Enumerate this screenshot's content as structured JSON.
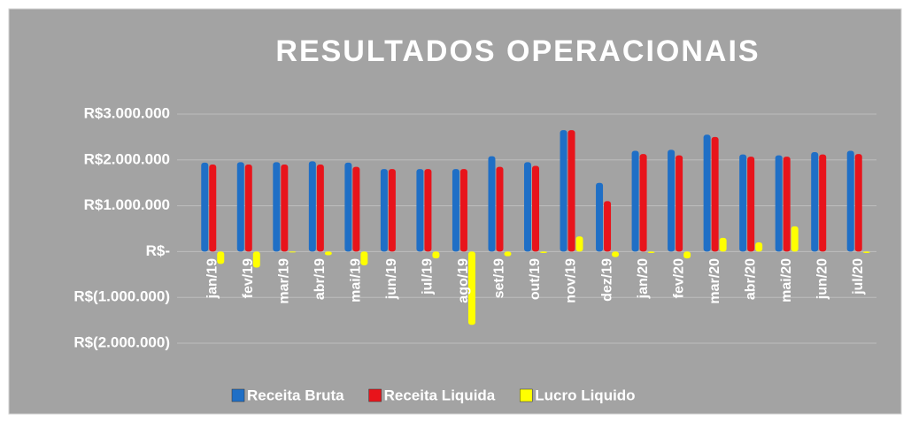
{
  "chart_data": {
    "type": "bar",
    "title": "RESULTADOS OPERACIONAIS",
    "categories": [
      "jan/19",
      "fev/19",
      "mar/19",
      "abr/19",
      "mai/19",
      "jun/19",
      "jul/19",
      "ago/19",
      "set/19",
      "out/19",
      "nov/19",
      "dez/19",
      "jan/20",
      "fev/20",
      "mar/20",
      "abr/20",
      "mai/20",
      "jun/20",
      "jul/20"
    ],
    "series": [
      {
        "name": "Receita Bruta",
        "color": "#1f6fc6",
        "values": [
          1940000,
          1950000,
          1950000,
          1970000,
          1940000,
          1800000,
          1800000,
          1800000,
          2080000,
          1950000,
          2650000,
          1500000,
          2200000,
          2220000,
          2550000,
          2120000,
          2100000,
          2170000,
          2200000
        ]
      },
      {
        "name": "Receita Liquida",
        "color": "#e8141b",
        "values": [
          1900000,
          1900000,
          1900000,
          1900000,
          1850000,
          1800000,
          1800000,
          1800000,
          1850000,
          1870000,
          2650000,
          1100000,
          2130000,
          2100000,
          2500000,
          2070000,
          2070000,
          2120000,
          2130000
        ]
      },
      {
        "name": "Lucro Liquido",
        "color": "#ffff00",
        "values": [
          -270000,
          -350000,
          -20000,
          -80000,
          -300000,
          0,
          -150000,
          -1600000,
          -100000,
          -30000,
          330000,
          -120000,
          -30000,
          -150000,
          300000,
          200000,
          550000,
          0,
          -30000
        ]
      }
    ],
    "ylim": [
      -2000000,
      3000000
    ],
    "yticks": [
      {
        "value": -2000000,
        "label": "R$(2.000.000)"
      },
      {
        "value": -1000000,
        "label": "R$(1.000.000)"
      },
      {
        "value": 0,
        "label": "R$-"
      },
      {
        "value": 1000000,
        "label": "R$1.000.000"
      },
      {
        "value": 2000000,
        "label": "R$2.000.000"
      },
      {
        "value": 3000000,
        "label": "R$3.000.000"
      }
    ],
    "grid": true,
    "legend": "bottom"
  }
}
